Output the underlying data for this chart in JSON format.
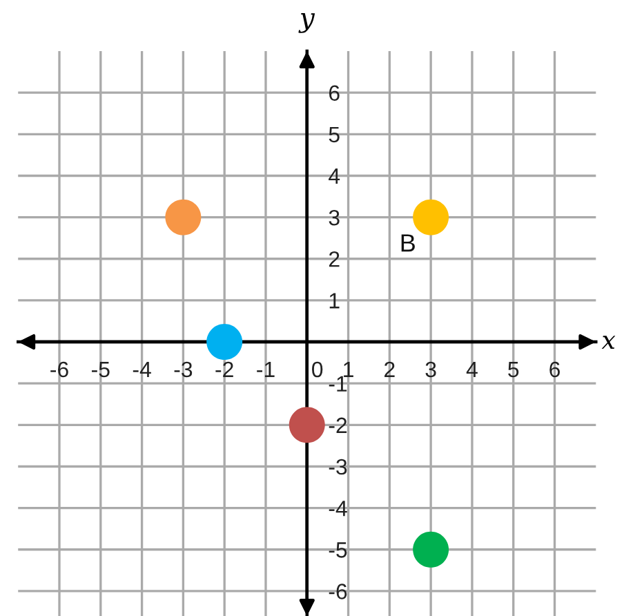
{
  "chart_data": {
    "type": "scatter",
    "xlabel": "x",
    "ylabel": "y",
    "x": [
      -3,
      -2,
      0,
      3,
      3
    ],
    "values": [
      3,
      0,
      -2,
      3,
      -5
    ],
    "colors": [
      "#f79646",
      "#00b0f0",
      "#c0504d",
      "#ffc000",
      "#00b050"
    ],
    "xlim": [
      -7,
      7
    ],
    "ylim": [
      -6.6,
      7
    ],
    "xticks": [
      -6,
      -5,
      -4,
      -3,
      -2,
      -1,
      0,
      1,
      2,
      3,
      4,
      5,
      6
    ],
    "yticks": [
      -6,
      -5,
      -4,
      -3,
      -2,
      -1,
      1,
      2,
      3,
      4,
      5,
      6
    ],
    "grid": true,
    "marker": "circle",
    "annotations": [
      {
        "text": "B",
        "x": 3,
        "y": 3
      }
    ]
  }
}
